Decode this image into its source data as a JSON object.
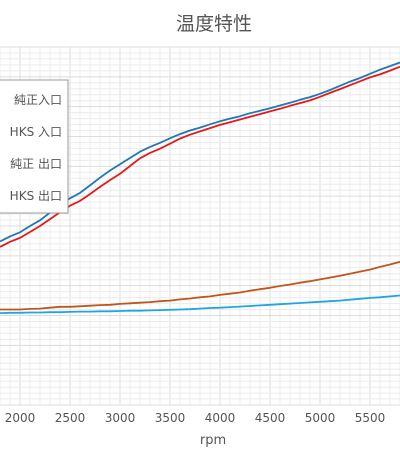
{
  "chart_data": {
    "type": "line",
    "title": "温度特性",
    "xlabel": "rpm",
    "ylabel": "",
    "xlim": [
      1800,
      5800
    ],
    "ylim": [
      0,
      120
    ],
    "x_ticks": [
      2000,
      2500,
      3000,
      3500,
      4000,
      4500,
      5000,
      5500
    ],
    "grid": true,
    "legend": "top-left",
    "series": [
      {
        "name": "純正入口",
        "color": "#1f77b4",
        "x": [
          1800,
          1900,
          2000,
          2100,
          2200,
          2300,
          2400,
          2500,
          2600,
          2700,
          2800,
          2900,
          3000,
          3100,
          3200,
          3300,
          3400,
          3500,
          3600,
          3700,
          3800,
          3900,
          4000,
          4100,
          4200,
          4300,
          4400,
          4500,
          4600,
          4700,
          4800,
          4900,
          5000,
          5100,
          5200,
          5300,
          5400,
          5500,
          5600,
          5700,
          5800
        ],
        "y": [
          54.8,
          56.5,
          57.9,
          60.0,
          61.9,
          64.5,
          67.1,
          69.3,
          71.1,
          73.6,
          76.2,
          78.6,
          80.7,
          82.8,
          84.9,
          86.5,
          87.9,
          89.4,
          90.8,
          92.0,
          93.0,
          94.1,
          95.1,
          96.0,
          96.8,
          97.8,
          98.6,
          99.5,
          100.4,
          101.3,
          102.3,
          103.2,
          104.3,
          105.6,
          107.0,
          108.4,
          109.6,
          111.0,
          112.4,
          113.6,
          114.8
        ]
      },
      {
        "name": "HKS 入口",
        "color": "#e31a1c",
        "x": [
          1800,
          1900,
          2000,
          2100,
          2200,
          2300,
          2400,
          2500,
          2600,
          2700,
          2800,
          2900,
          3000,
          3100,
          3200,
          3300,
          3400,
          3500,
          3600,
          3700,
          3800,
          3900,
          4000,
          4100,
          4200,
          4300,
          4400,
          4500,
          4600,
          4700,
          4800,
          4900,
          5000,
          5100,
          5200,
          5300,
          5400,
          5500,
          5600,
          5700,
          5800
        ],
        "y": [
          53.0,
          54.7,
          56.0,
          58.0,
          60.0,
          62.3,
          64.6,
          66.8,
          68.4,
          70.7,
          73.1,
          75.4,
          77.5,
          80.1,
          82.7,
          84.5,
          85.9,
          87.6,
          89.3,
          90.6,
          91.7,
          92.8,
          93.9,
          94.8,
          95.7,
          96.6,
          97.5,
          98.4,
          99.3,
          100.3,
          101.2,
          102.1,
          103.3,
          104.6,
          105.9,
          107.2,
          108.5,
          109.8,
          110.8,
          112.1,
          113.4
        ]
      },
      {
        "name": "純正 出口",
        "color": "#c0561c",
        "x": [
          1800,
          1900,
          2000,
          2100,
          2200,
          2300,
          2400,
          2500,
          2600,
          2700,
          2800,
          2900,
          3000,
          3100,
          3200,
          3300,
          3400,
          3500,
          3600,
          3700,
          3800,
          3900,
          4000,
          4100,
          4200,
          4300,
          4400,
          4500,
          4600,
          4700,
          4800,
          4900,
          5000,
          5100,
          5200,
          5300,
          5400,
          5500,
          5600,
          5700,
          5800
        ],
        "y": [
          32.0,
          32.0,
          32.0,
          32.2,
          32.3,
          32.6,
          32.9,
          32.9,
          33.1,
          33.3,
          33.5,
          33.6,
          33.9,
          34.1,
          34.3,
          34.5,
          34.8,
          35.0,
          35.4,
          35.7,
          36.1,
          36.4,
          36.9,
          37.3,
          37.7,
          38.3,
          38.8,
          39.3,
          39.9,
          40.4,
          41.0,
          41.5,
          42.1,
          42.7,
          43.3,
          44.0,
          44.7,
          45.4,
          46.3,
          47.1,
          48.0
        ]
      },
      {
        "name": "HKS 出口",
        "color": "#1fa6e0",
        "x": [
          1800,
          1900,
          2000,
          2100,
          2200,
          2300,
          2400,
          2500,
          2600,
          2700,
          2800,
          2900,
          3000,
          3100,
          3200,
          3300,
          3400,
          3500,
          3600,
          3700,
          3800,
          3900,
          4000,
          4100,
          4200,
          4300,
          4400,
          4500,
          4600,
          4700,
          4800,
          4900,
          5000,
          5100,
          5200,
          5300,
          5400,
          5500,
          5600,
          5700,
          5800
        ],
        "y": [
          30.8,
          30.9,
          30.9,
          31.0,
          31.0,
          31.1,
          31.1,
          31.2,
          31.3,
          31.3,
          31.4,
          31.4,
          31.5,
          31.6,
          31.6,
          31.7,
          31.8,
          31.9,
          32.0,
          32.1,
          32.3,
          32.5,
          32.6,
          32.8,
          33.0,
          33.2,
          33.4,
          33.6,
          33.8,
          34.0,
          34.2,
          34.4,
          34.6,
          34.8,
          35.0,
          35.3,
          35.6,
          35.9,
          36.1,
          36.4,
          36.7
        ]
      }
    ]
  }
}
